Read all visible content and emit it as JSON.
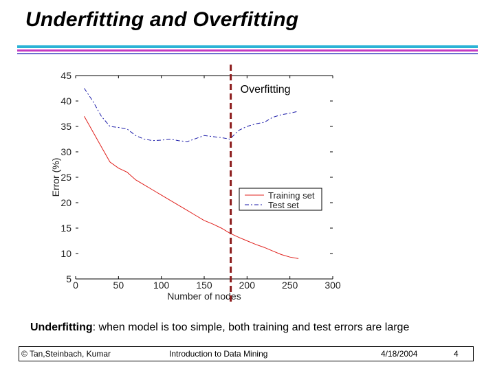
{
  "slide": {
    "title": "Underfitting and Overfitting",
    "caption_term": "Underfitting",
    "caption_rest": ": when model is too simple, both training and test errors are large"
  },
  "footer": {
    "author": "© Tan,Steinbach, Kumar",
    "course": "Introduction to Data Mining",
    "date": "4/18/2004",
    "page": "4"
  },
  "colors": {
    "training": "#e0201c",
    "test": "#1a1aa8",
    "marker": "#8b1a1a",
    "axis": "#000000"
  },
  "chart_data": {
    "type": "line",
    "xlabel": "Number of nodes",
    "ylabel": "Error (%)",
    "xlim": [
      0,
      300
    ],
    "ylim": [
      5,
      45
    ],
    "xticks": [
      0,
      50,
      100,
      150,
      200,
      250,
      300
    ],
    "yticks": [
      5,
      10,
      15,
      20,
      25,
      30,
      35,
      40,
      45
    ],
    "annotation": "Overfitting",
    "vline_x": 181,
    "legend_position": "center-right",
    "series": [
      {
        "name": "Training set",
        "style": "solid",
        "x": [
          10,
          20,
          30,
          40,
          50,
          60,
          70,
          80,
          90,
          100,
          110,
          120,
          130,
          140,
          150,
          160,
          170,
          180,
          190,
          200,
          210,
          220,
          230,
          240,
          250,
          260
        ],
        "y": [
          37,
          34,
          31,
          28,
          26.8,
          26,
          24.5,
          23.5,
          22.5,
          21.5,
          20.5,
          19.5,
          18.5,
          17.5,
          16.5,
          15.8,
          15,
          14,
          13.2,
          12.5,
          11.8,
          11.2,
          10.5,
          9.8,
          9.3,
          9
        ]
      },
      {
        "name": "Test set",
        "style": "dashdot",
        "x": [
          10,
          20,
          30,
          40,
          50,
          60,
          70,
          80,
          90,
          100,
          110,
          120,
          130,
          140,
          150,
          160,
          170,
          180,
          190,
          200,
          210,
          220,
          230,
          240,
          250,
          260
        ],
        "y": [
          42.5,
          40,
          37,
          35,
          34.8,
          34.5,
          33.2,
          32.5,
          32.2,
          32.3,
          32.5,
          32.2,
          32.0,
          32.6,
          33.2,
          33.0,
          32.8,
          32.5,
          34.2,
          35.0,
          35.5,
          35.8,
          36.8,
          37.3,
          37.6,
          38.0
        ]
      }
    ]
  }
}
